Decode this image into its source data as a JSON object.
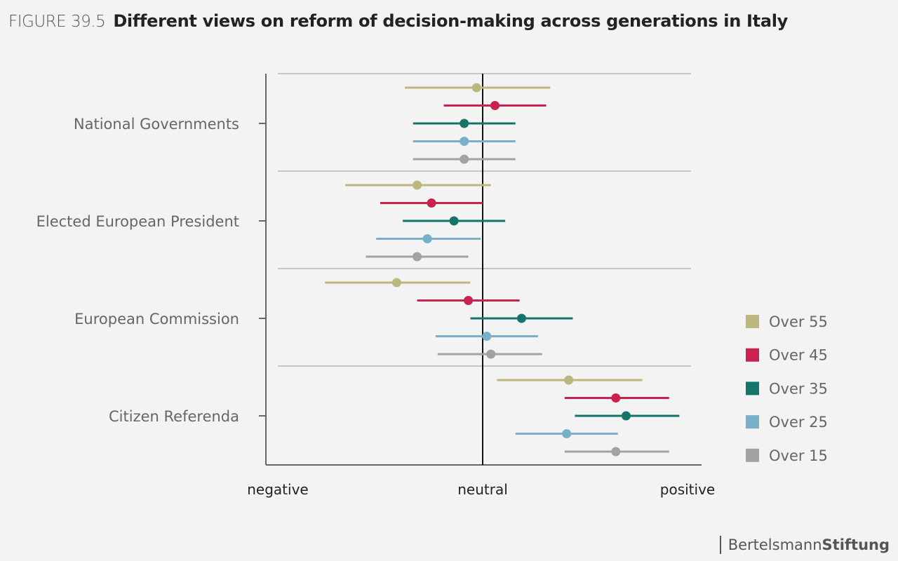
{
  "figure": {
    "number": "FIGURE 39.5",
    "title": "Different views on reform of decision-making across generations in Italy"
  },
  "brand": {
    "part1": "Bertelsmann",
    "part2": "Stiftung"
  },
  "chart_data": {
    "type": "dot-interval",
    "title": "Different views on reform of decision-making across generations in Italy",
    "x_ticks": [
      {
        "value": -1,
        "label": "negative"
      },
      {
        "value": 0,
        "label": "neutral"
      },
      {
        "value": 1,
        "label": "positive"
      }
    ],
    "xlim": [
      -1.06,
      1.08
    ],
    "categories": [
      "National Governments",
      "Elected European President",
      "European Commission",
      "Citizen Referenda"
    ],
    "series": [
      {
        "name": "Over 55",
        "color": "#bcb77c",
        "points": [
          {
            "mean": -0.03,
            "low": -0.38,
            "high": 0.33
          },
          {
            "mean": -0.32,
            "low": -0.67,
            "high": 0.04
          },
          {
            "mean": -0.42,
            "low": -0.77,
            "high": -0.06
          },
          {
            "mean": 0.42,
            "low": 0.07,
            "high": 0.78
          }
        ]
      },
      {
        "name": "Over 45",
        "color": "#c8234f",
        "points": [
          {
            "mean": 0.06,
            "low": -0.19,
            "high": 0.31
          },
          {
            "mean": -0.25,
            "low": -0.5,
            "high": 0.0
          },
          {
            "mean": -0.07,
            "low": -0.32,
            "high": 0.18
          },
          {
            "mean": 0.65,
            "low": 0.4,
            "high": 0.91
          }
        ]
      },
      {
        "name": "Over 35",
        "color": "#16756b",
        "points": [
          {
            "mean": -0.09,
            "low": -0.34,
            "high": 0.16
          },
          {
            "mean": -0.14,
            "low": -0.39,
            "high": 0.11
          },
          {
            "mean": 0.19,
            "low": -0.06,
            "high": 0.44
          },
          {
            "mean": 0.7,
            "low": 0.45,
            "high": 0.96
          }
        ]
      },
      {
        "name": "Over 25",
        "color": "#79b0c8",
        "points": [
          {
            "mean": -0.09,
            "low": -0.34,
            "high": 0.16
          },
          {
            "mean": -0.27,
            "low": -0.52,
            "high": -0.01
          },
          {
            "mean": 0.02,
            "low": -0.23,
            "high": 0.27
          },
          {
            "mean": 0.41,
            "low": 0.16,
            "high": 0.66
          }
        ]
      },
      {
        "name": "Over 15",
        "color": "#9fa3a6",
        "points": [
          {
            "mean": -0.09,
            "low": -0.34,
            "high": 0.16
          },
          {
            "mean": -0.32,
            "low": -0.57,
            "high": -0.07
          },
          {
            "mean": 0.04,
            "low": -0.22,
            "high": 0.29
          },
          {
            "mean": 0.65,
            "low": 0.4,
            "high": 0.91
          }
        ]
      }
    ],
    "grid": "horizontal separators",
    "legend_position": "right"
  }
}
